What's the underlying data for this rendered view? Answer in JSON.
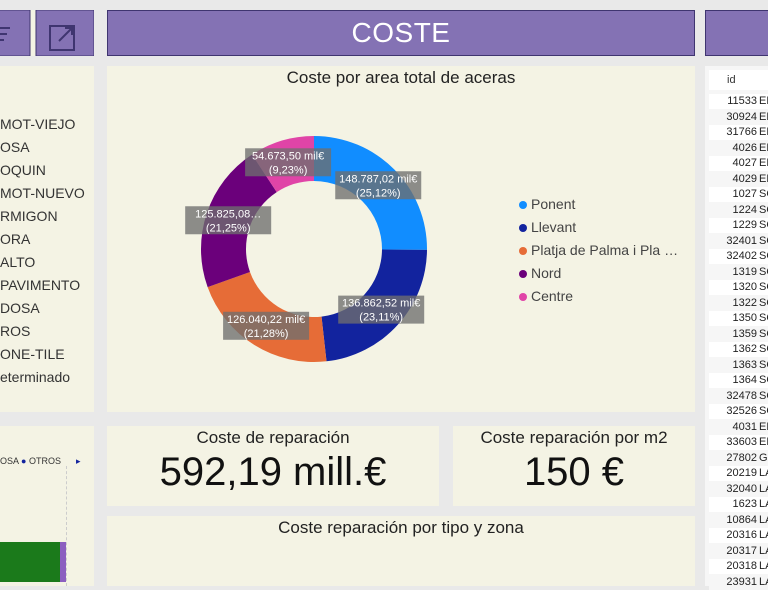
{
  "header": {
    "title": "COSTE"
  },
  "left_slicer": {
    "items": [
      "MOT-VIEJO",
      "OSA",
      "OQUIN",
      "MOT-NUEVO",
      "RMIGON",
      "ORA",
      "ALTO",
      "PAVIMENTO",
      "DOSA",
      "ROS",
      "ONE-TILE",
      "eterminado"
    ],
    "legend_fragment": "OSA",
    "legend_fragment2": "OTROS"
  },
  "donut_chart": {
    "title": "Coste por area total de aceras",
    "chart_data": {
      "type": "pie",
      "title": "Coste por area total de aceras",
      "donut": true,
      "legend_placement": "right",
      "slices": [
        {
          "name": "Ponent",
          "value": 148787.02,
          "label": "148.787,02 mil€",
          "pct_label": "(25,12%)",
          "color": "#118dff"
        },
        {
          "name": "Llevant",
          "value": 136862.52,
          "label": "136.862,52 mil€",
          "pct_label": "(23,11%)",
          "color": "#12239e"
        },
        {
          "name": "Platja de Palma i Pla …",
          "value": 126040.22,
          "label": "126.040,22 mil€",
          "pct_label": "(21,28%)",
          "color": "#e66c37"
        },
        {
          "name": "Nord",
          "value": 125825.08,
          "label": "125.825,08…",
          "pct_label": "(21,25%)",
          "color": "#6b007b"
        },
        {
          "name": "Centre",
          "value": 54673.5,
          "label": "54.673,50 mil€",
          "pct_label": "(9,23%)",
          "color": "#e044a7"
        }
      ]
    }
  },
  "kpis": [
    {
      "title": "Coste de reparación",
      "value": "592,19 mill.€"
    },
    {
      "title": "Coste reparación por m2",
      "value": "150 €"
    }
  ],
  "bottom_chart": {
    "title": "Coste reparación por tipo y zona"
  },
  "table": {
    "column_header": "id",
    "rows": [
      {
        "id": "11533",
        "name": "EL"
      },
      {
        "id": "30924",
        "name": "EL"
      },
      {
        "id": "31766",
        "name": "EL"
      },
      {
        "id": "4026",
        "name": "EL"
      },
      {
        "id": "4027",
        "name": "EL"
      },
      {
        "id": "4029",
        "name": "EL"
      },
      {
        "id": "1027",
        "name": "SO"
      },
      {
        "id": "1224",
        "name": "SO"
      },
      {
        "id": "1229",
        "name": "SO"
      },
      {
        "id": "32401",
        "name": "SO"
      },
      {
        "id": "32402",
        "name": "SO"
      },
      {
        "id": "1319",
        "name": "SO"
      },
      {
        "id": "1320",
        "name": "SO"
      },
      {
        "id": "1322",
        "name": "SO"
      },
      {
        "id": "1350",
        "name": "SO"
      },
      {
        "id": "1359",
        "name": "SO"
      },
      {
        "id": "1362",
        "name": "SO"
      },
      {
        "id": "1363",
        "name": "SO"
      },
      {
        "id": "1364",
        "name": "SO"
      },
      {
        "id": "32478",
        "name": "SO"
      },
      {
        "id": "32526",
        "name": "SO"
      },
      {
        "id": "4031",
        "name": "EL"
      },
      {
        "id": "33603",
        "name": "EL"
      },
      {
        "id": "27802",
        "name": "GE"
      },
      {
        "id": "20219",
        "name": "LA"
      },
      {
        "id": "32040",
        "name": "LA"
      },
      {
        "id": "1623",
        "name": "LA"
      },
      {
        "id": "10864",
        "name": "LA"
      },
      {
        "id": "20316",
        "name": "LA"
      },
      {
        "id": "20317",
        "name": "LA"
      },
      {
        "id": "20318",
        "name": "LA"
      },
      {
        "id": "23931",
        "name": "LA"
      }
    ]
  },
  "colors": {
    "header_bg": "#8472b4",
    "panel_bg": "#f4f3e4",
    "page_bg": "#e9e9e9"
  }
}
